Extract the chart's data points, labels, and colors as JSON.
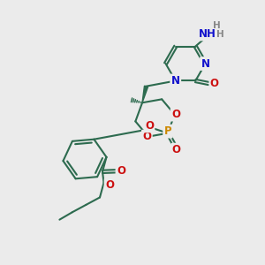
{
  "bg_color": "#ebebeb",
  "bond_color": "#2d6b4f",
  "bond_width": 1.5,
  "dbo": 0.055,
  "atom_colors": {
    "N": "#1010cc",
    "O": "#cc1010",
    "P": "#cc8800",
    "H": "#888888"
  },
  "font_size": 8.5,
  "fig_size": [
    3.0,
    3.0
  ],
  "dpi": 100
}
